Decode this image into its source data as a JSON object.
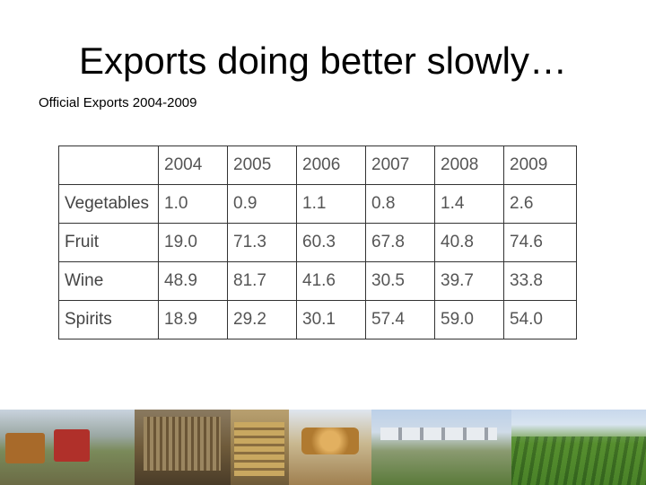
{
  "title": "Exports doing better slowly…",
  "subtitle": "Official Exports 2004-2009",
  "table": {
    "header": [
      "",
      "2004",
      "2005",
      "2006",
      "2007",
      "2008",
      "2009"
    ],
    "rows": [
      {
        "label": "Vegetables",
        "values": [
          "1.0",
          "0.9",
          "1.1",
          "0.8",
          "1.4",
          "2.6"
        ]
      },
      {
        "label": "Fruit",
        "values": [
          "19.0",
          "71.3",
          "60.3",
          "67.8",
          "40.8",
          "74.6"
        ]
      },
      {
        "label": "Wine",
        "values": [
          "48.9",
          "81.7",
          "41.6",
          "30.5",
          "39.7",
          "33.8"
        ]
      },
      {
        "label": "Spirits",
        "values": [
          "18.9",
          "29.2",
          "30.1",
          "57.4",
          "59.0",
          "54.0"
        ]
      }
    ]
  }
}
